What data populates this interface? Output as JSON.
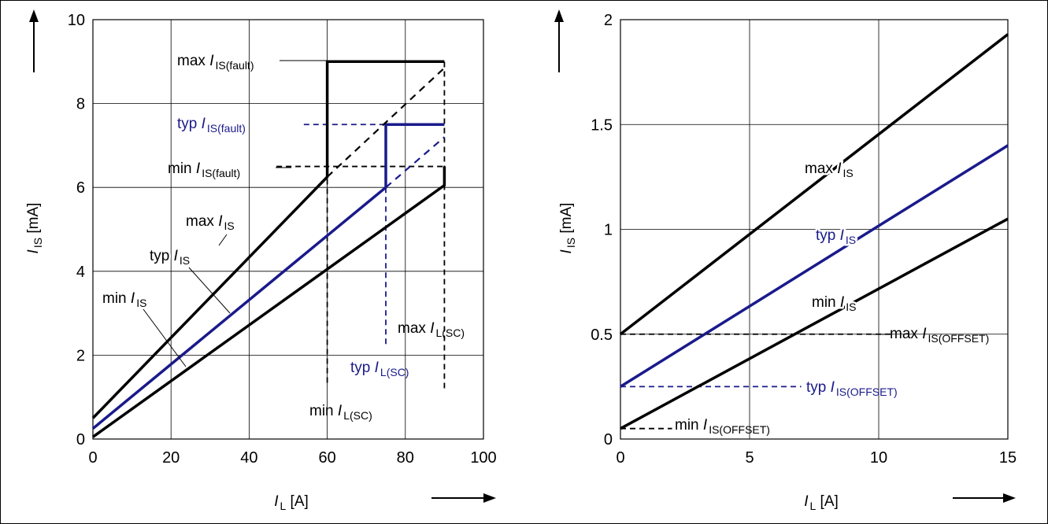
{
  "colors": {
    "black": "#000000",
    "blue": "#1a1a8c",
    "grid": "#000000"
  },
  "chart_data": [
    {
      "type": "line",
      "xlabel": {
        "main": "I",
        "sub": "L",
        "unit": " [A]"
      },
      "ylabel": {
        "main": "I",
        "sub": "IS",
        "unit": " [mA]"
      },
      "xlim": [
        0,
        100
      ],
      "ylim": [
        0,
        10
      ],
      "xticks": [
        "0",
        "20",
        "40",
        "60",
        "80",
        "100"
      ],
      "yticks": [
        "0",
        "2",
        "4",
        "6",
        "8",
        "10"
      ],
      "grid": true,
      "series": [
        {
          "name": "max I_IS",
          "color": "black",
          "style": "solid",
          "points": [
            [
              0,
              0.5
            ],
            [
              60,
              6.25
            ],
            [
              60,
              9
            ],
            [
              90,
              9
            ]
          ]
        },
        {
          "name": "typ I_IS",
          "color": "blue",
          "style": "solid",
          "points": [
            [
              0,
              0.25
            ],
            [
              75,
              6
            ],
            [
              75,
              7.5
            ],
            [
              90,
              7.5
            ]
          ]
        },
        {
          "name": "min I_IS",
          "color": "black",
          "style": "solid",
          "points": [
            [
              0,
              0.05
            ],
            [
              90,
              6.05
            ],
            [
              90,
              6.5
            ]
          ]
        },
        {
          "name": "max extension",
          "color": "black",
          "style": "dashed",
          "points": [
            [
              60,
              6.25
            ],
            [
              90,
              8.85
            ]
          ]
        },
        {
          "name": "typ extension",
          "color": "blue",
          "style": "dashed",
          "points": [
            [
              75,
              6
            ],
            [
              90,
              7.2
            ]
          ]
        }
      ],
      "reference_lines": [
        {
          "color": "black",
          "points": [
            [
              61,
              9
            ],
            [
              90,
              9
            ],
            [
              90,
              1.2
            ]
          ]
        },
        {
          "color": "blue",
          "points": [
            [
              54,
              7.5
            ],
            [
              75,
              7.5
            ]
          ]
        },
        {
          "color": "black",
          "points": [
            [
              47,
              6.5
            ],
            [
              90,
              6.5
            ]
          ]
        },
        {
          "color": "black",
          "points": [
            [
              60,
              6.2
            ],
            [
              60,
              1.3
            ]
          ]
        },
        {
          "color": "blue",
          "points": [
            [
              75,
              6
            ],
            [
              75,
              2.2
            ]
          ]
        }
      ],
      "labels": [
        {
          "id": "max_fault",
          "prefix": "max ",
          "main": "I",
          "sub": "IS(fault)",
          "color": "black"
        },
        {
          "id": "typ_fault",
          "prefix": "typ ",
          "main": "I",
          "sub": "IS(fault)",
          "color": "blue"
        },
        {
          "id": "min_fault",
          "prefix": "min ",
          "main": "I",
          "sub": "IS(fault)",
          "color": "black"
        },
        {
          "id": "max_is",
          "prefix": "max  ",
          "main": "I",
          "sub": "IS",
          "color": "black"
        },
        {
          "id": "typ_is",
          "prefix": "typ ",
          "main": "I",
          "sub": "IS",
          "color": "black"
        },
        {
          "id": "min_is",
          "prefix": "min ",
          "main": "I",
          "sub": "IS",
          "color": "black"
        },
        {
          "id": "max_lsc",
          "prefix": "max ",
          "main": "I",
          "sub": "L(SC)",
          "color": "black"
        },
        {
          "id": "typ_lsc",
          "prefix": "typ ",
          "main": "I",
          "sub": "L(SC)",
          "color": "blue"
        },
        {
          "id": "min_lsc",
          "prefix": "min ",
          "main": "I",
          "sub": "L(SC)",
          "color": "black"
        }
      ]
    },
    {
      "type": "line",
      "xlabel": {
        "main": "I",
        "sub": "L",
        "unit": " [A]"
      },
      "ylabel": {
        "main": "I",
        "sub": "IS",
        "unit": " [mA]"
      },
      "xlim": [
        0,
        15
      ],
      "ylim": [
        0,
        2
      ],
      "xticks": [
        "0",
        "5",
        "10",
        "15"
      ],
      "yticks": [
        "0",
        "0.5",
        "1",
        "1.5",
        "2"
      ],
      "grid": true,
      "series": [
        {
          "name": "max I_IS",
          "color": "black",
          "style": "solid",
          "points": [
            [
              0,
              0.5
            ],
            [
              15,
              1.93
            ]
          ]
        },
        {
          "name": "typ I_IS",
          "color": "blue",
          "style": "solid",
          "points": [
            [
              0,
              0.25
            ],
            [
              15,
              1.4
            ]
          ]
        },
        {
          "name": "min I_IS",
          "color": "black",
          "style": "solid",
          "points": [
            [
              0,
              0.05
            ],
            [
              15,
              1.05
            ]
          ]
        }
      ],
      "reference_lines": [
        {
          "color": "black",
          "points": [
            [
              0,
              0.5
            ],
            [
              10.5,
              0.5
            ]
          ]
        },
        {
          "color": "blue",
          "points": [
            [
              0,
              0.25
            ],
            [
              7,
              0.25
            ]
          ]
        },
        {
          "color": "black",
          "points": [
            [
              0,
              0.05
            ],
            [
              2,
              0.05
            ]
          ]
        }
      ],
      "labels": [
        {
          "id": "max_is",
          "prefix": "max ",
          "main": "I",
          "sub": "IS",
          "color": "black"
        },
        {
          "id": "typ_is",
          "prefix": "typ ",
          "main": "I",
          "sub": "IS",
          "color": "blue"
        },
        {
          "id": "min_is",
          "prefix": "min ",
          "main": "I",
          "sub": "IS",
          "color": "black"
        },
        {
          "id": "max_offset",
          "prefix": "max ",
          "main": "I",
          "sub": "IS(OFFSET)",
          "color": "black"
        },
        {
          "id": "typ_offset",
          "prefix": "typ ",
          "main": "I",
          "sub": "IS(OFFSET)",
          "color": "blue"
        },
        {
          "id": "min_offset",
          "prefix": "min ",
          "main": "I",
          "sub": "IS(OFFSET)",
          "color": "black"
        }
      ]
    }
  ]
}
